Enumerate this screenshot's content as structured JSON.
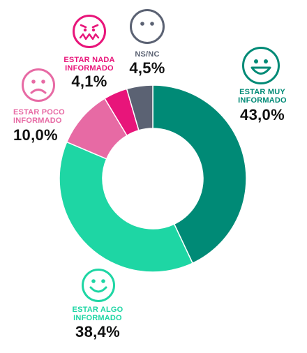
{
  "chart_data": {
    "type": "pie",
    "donut": true,
    "slices": [
      {
        "label": "ESTAR MUY\nINFORMADO",
        "value": 43.0,
        "display": "43,0%",
        "color": "#008a76",
        "icon": "happy-face-icon"
      },
      {
        "label": "ESTAR ALGO\nINFORMADO",
        "value": 38.4,
        "display": "38,4%",
        "color": "#1ed6a4",
        "icon": "smile-face-icon"
      },
      {
        "label": "ESTAR POCO\nINFORMADO",
        "value": 10.0,
        "display": "10,0%",
        "color": "#e76aa4",
        "icon": "sad-face-icon"
      },
      {
        "label": "ESTAR NADA\nINFORMADO",
        "value": 4.1,
        "display": "4,1%",
        "color": "#e8157a",
        "icon": "grimace-face-icon"
      },
      {
        "label": "NS/NC",
        "value": 4.5,
        "display": "4,5%",
        "color": "#5b6273",
        "icon": "neutral-face-icon"
      }
    ]
  }
}
